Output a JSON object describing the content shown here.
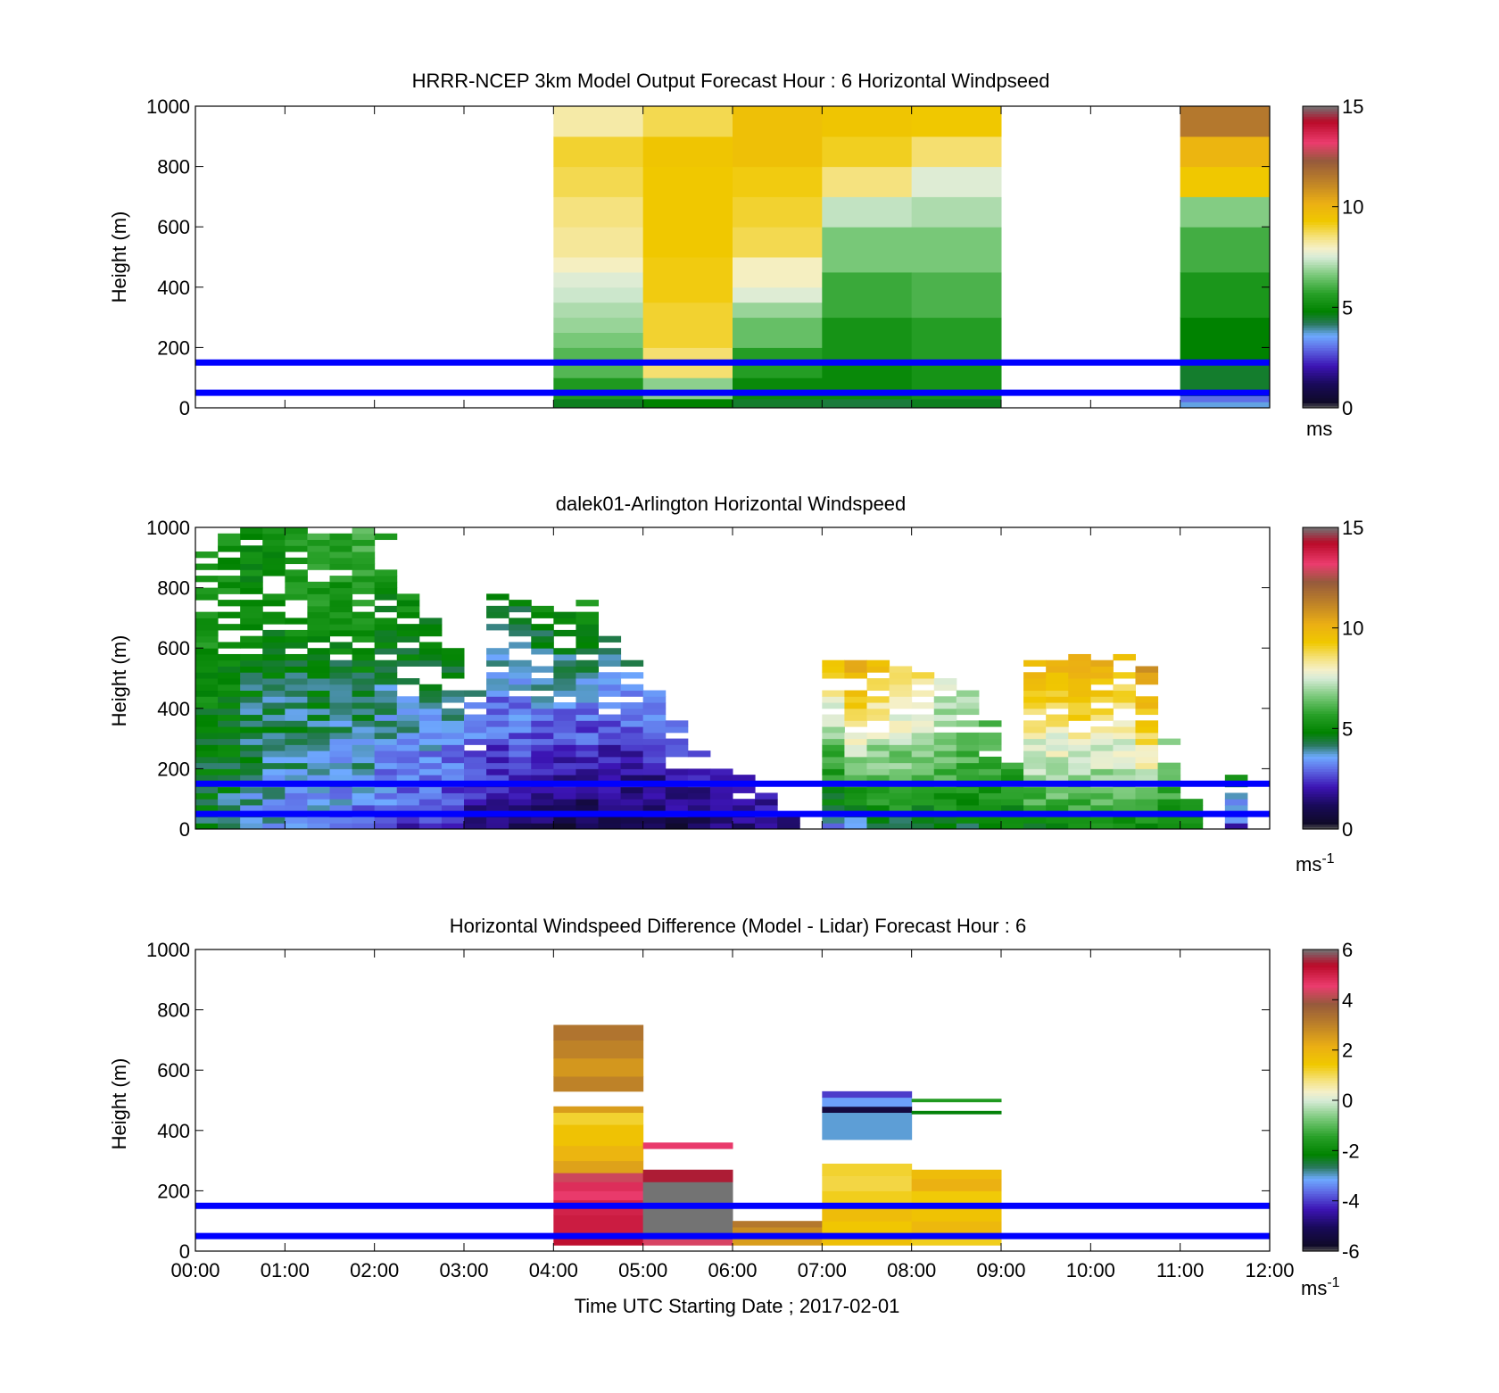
{
  "figure": {
    "xlabel": "Time UTC  Starting Date ; 2017-02-01",
    "x_ticks": [
      "00:00",
      "01:00",
      "02:00",
      "03:00",
      "04:00",
      "05:00",
      "06:00",
      "07:00",
      "08:00",
      "09:00",
      "10:00",
      "11:00",
      "12:00"
    ],
    "reference_lines_m": [
      50,
      150
    ],
    "reference_line_color": "#0000ff"
  },
  "chart_data": [
    {
      "type": "heatmap",
      "title": "HRRR-NCEP 3km Model Output   Forecast Hour : 6 Horizontal Windpseed",
      "ylabel": "Height (m)",
      "ylim": [
        0,
        1000
      ],
      "xlim_hours": [
        0,
        12
      ],
      "y_ticks": [
        0,
        200,
        400,
        600,
        800,
        1000
      ],
      "colorbar": {
        "label": "ms",
        "label_sup": "",
        "ticks": [
          0,
          5,
          10,
          15
        ],
        "range": [
          0,
          15
        ]
      },
      "columns": [
        {
          "start_h": 4,
          "end_h": 5,
          "cells": [
            [
              0,
              30,
              4.6
            ],
            [
              30,
              100,
              5.5
            ],
            [
              100,
              200,
              6.2
            ],
            [
              200,
              250,
              6.6
            ],
            [
              250,
              300,
              6.9
            ],
            [
              300,
              350,
              7.1
            ],
            [
              350,
              400,
              7.4
            ],
            [
              400,
              450,
              7.6
            ],
            [
              450,
              500,
              8.0
            ],
            [
              500,
              600,
              8.3
            ],
            [
              600,
              700,
              8.5
            ],
            [
              700,
              800,
              8.8
            ],
            [
              800,
              900,
              9.0
            ],
            [
              900,
              1000,
              8.2
            ]
          ]
        },
        {
          "start_h": 5,
          "end_h": 6,
          "cells": [
            [
              0,
              30,
              4.8
            ],
            [
              30,
              100,
              6.8
            ],
            [
              100,
              200,
              8.6
            ],
            [
              200,
              350,
              9.0
            ],
            [
              350,
              500,
              9.2
            ],
            [
              500,
              800,
              9.3
            ],
            [
              800,
              900,
              9.4
            ],
            [
              900,
              1000,
              8.8
            ]
          ]
        },
        {
          "start_h": 6,
          "end_h": 7,
          "cells": [
            [
              0,
              30,
              4.5
            ],
            [
              30,
              100,
              5.0
            ],
            [
              100,
              200,
              5.6
            ],
            [
              200,
              300,
              6.4
            ],
            [
              300,
              350,
              6.9
            ],
            [
              350,
              400,
              7.6
            ],
            [
              400,
              500,
              8.0
            ],
            [
              500,
              600,
              8.8
            ],
            [
              600,
              700,
              9.0
            ],
            [
              700,
              800,
              9.2
            ],
            [
              800,
              1000,
              9.6
            ]
          ]
        },
        {
          "start_h": 7,
          "end_h": 8,
          "cells": [
            [
              0,
              30,
              4.4
            ],
            [
              30,
              150,
              5.0
            ],
            [
              150,
              300,
              5.3
            ],
            [
              300,
              450,
              5.9
            ],
            [
              450,
              600,
              6.6
            ],
            [
              600,
              700,
              7.3
            ],
            [
              700,
              800,
              8.5
            ],
            [
              800,
              900,
              9.1
            ],
            [
              900,
              1000,
              9.4
            ]
          ]
        },
        {
          "start_h": 8,
          "end_h": 9,
          "cells": [
            [
              0,
              30,
              4.6
            ],
            [
              30,
              150,
              5.3
            ],
            [
              150,
              300,
              5.6
            ],
            [
              300,
              450,
              6.1
            ],
            [
              450,
              600,
              6.6
            ],
            [
              600,
              700,
              7.1
            ],
            [
              700,
              800,
              7.6
            ],
            [
              800,
              900,
              8.6
            ],
            [
              900,
              1000,
              9.3
            ]
          ]
        },
        {
          "start_h": 11,
          "end_h": 12,
          "cells": [
            [
              0,
              20,
              3.7
            ],
            [
              20,
              40,
              3.0
            ],
            [
              40,
              150,
              4.5
            ],
            [
              150,
              300,
              4.8
            ],
            [
              300,
              450,
              5.4
            ],
            [
              450,
              600,
              6.0
            ],
            [
              600,
              700,
              6.7
            ],
            [
              700,
              800,
              9.3
            ],
            [
              800,
              900,
              10.0
            ],
            [
              900,
              1000,
              11.5
            ]
          ]
        }
      ]
    },
    {
      "type": "heatmap",
      "title": "dalek01-Arlington  Horizontal Windspeed",
      "ylabel": "Height (m)",
      "ylim": [
        0,
        1000
      ],
      "xlim_hours": [
        0,
        12
      ],
      "y_ticks": [
        0,
        200,
        400,
        600,
        800,
        1000
      ],
      "colorbar": {
        "label": "ms",
        "label_sup": "-1",
        "ticks": [
          0,
          5,
          10,
          15
        ],
        "range": [
          0,
          15
        ]
      },
      "bin_hours": 0.25,
      "bin_height_m": 20,
      "profiles": [
        {
          "start_h": 0.0,
          "max_h": 1000,
          "low": 4.5,
          "high": 5.4
        },
        {
          "start_h": 0.25,
          "max_h": 1000,
          "low": 4.2,
          "high": 5.2
        },
        {
          "start_h": 0.5,
          "max_h": 1000,
          "low": 3.8,
          "high": 5.0
        },
        {
          "start_h": 0.75,
          "max_h": 1000,
          "low": 3.5,
          "high": 5.1
        },
        {
          "start_h": 1.0,
          "max_h": 1000,
          "low": 3.2,
          "high": 5.5
        },
        {
          "start_h": 1.25,
          "max_h": 1000,
          "low": 3.0,
          "high": 5.8
        },
        {
          "start_h": 1.5,
          "max_h": 1000,
          "low": 3.0,
          "high": 5.6
        },
        {
          "start_h": 1.75,
          "max_h": 1000,
          "low": 2.9,
          "high": 5.9
        },
        {
          "start_h": 2.0,
          "max_h": 980,
          "low": 2.6,
          "high": 5.4
        },
        {
          "start_h": 2.25,
          "max_h": 780,
          "low": 2.4,
          "high": 5.0
        },
        {
          "start_h": 2.5,
          "max_h": 700,
          "low": 2.2,
          "high": 4.8
        },
        {
          "start_h": 2.75,
          "max_h": 600,
          "low": 2.0,
          "high": 4.6
        },
        {
          "start_h": 3.0,
          "max_h": 460,
          "low": 1.6,
          "high": 3.6
        },
        {
          "start_h": 3.25,
          "max_h": 780,
          "low": 1.3,
          "high": 4.4
        },
        {
          "start_h": 3.5,
          "max_h": 780,
          "low": 1.1,
          "high": 4.6
        },
        {
          "start_h": 3.75,
          "max_h": 740,
          "low": 0.9,
          "high": 4.8
        },
        {
          "start_h": 4.0,
          "max_h": 760,
          "low": 0.7,
          "high": 4.9
        },
        {
          "start_h": 4.25,
          "max_h": 760,
          "low": 0.6,
          "high": 5.1
        },
        {
          "start_h": 4.5,
          "max_h": 640,
          "low": 0.6,
          "high": 4.2
        },
        {
          "start_h": 4.75,
          "max_h": 560,
          "low": 0.7,
          "high": 3.8
        },
        {
          "start_h": 5.0,
          "max_h": 460,
          "low": 0.8,
          "high": 3.4
        },
        {
          "start_h": 5.25,
          "max_h": 360,
          "low": 1.0,
          "high": 3.0
        },
        {
          "start_h": 5.5,
          "max_h": 280,
          "low": 1.2,
          "high": 2.6
        },
        {
          "start_h": 5.75,
          "max_h": 220,
          "low": 1.3,
          "high": 2.2
        },
        {
          "start_h": 6.0,
          "max_h": 180,
          "low": 1.5,
          "high": 1.9
        },
        {
          "start_h": 6.25,
          "max_h": 120,
          "low": 1.6,
          "high": 1.8
        },
        {
          "start_h": 6.5,
          "max_h": 60,
          "low": 1.8,
          "high": 1.9
        },
        {
          "start_h": 6.75,
          "max_h": 0,
          "low": 0,
          "high": 0
        },
        {
          "start_h": 7.0,
          "max_h": 560,
          "low": 3.3,
          "high": 9.0
        },
        {
          "start_h": 7.25,
          "max_h": 560,
          "low": 3.8,
          "high": 10.5
        },
        {
          "start_h": 7.5,
          "max_h": 560,
          "low": 4.2,
          "high": 9.5
        },
        {
          "start_h": 7.75,
          "max_h": 540,
          "low": 4.4,
          "high": 9.0
        },
        {
          "start_h": 8.0,
          "max_h": 520,
          "low": 4.5,
          "high": 8.5
        },
        {
          "start_h": 8.25,
          "max_h": 500,
          "low": 4.7,
          "high": 7.5
        },
        {
          "start_h": 8.5,
          "max_h": 460,
          "low": 4.6,
          "high": 7.0
        },
        {
          "start_h": 8.75,
          "max_h": 360,
          "low": 4.6,
          "high": 6.2
        },
        {
          "start_h": 9.0,
          "max_h": 220,
          "low": 4.6,
          "high": 5.6
        },
        {
          "start_h": 9.25,
          "max_h": 580,
          "low": 4.8,
          "high": 10.2
        },
        {
          "start_h": 9.5,
          "max_h": 580,
          "low": 5.0,
          "high": 10.0
        },
        {
          "start_h": 9.75,
          "max_h": 580,
          "low": 5.0,
          "high": 10.6
        },
        {
          "start_h": 10.0,
          "max_h": 580,
          "low": 5.1,
          "high": 10.0
        },
        {
          "start_h": 10.25,
          "max_h": 580,
          "low": 5.2,
          "high": 9.6
        },
        {
          "start_h": 10.5,
          "max_h": 560,
          "low": 5.3,
          "high": 10.8
        },
        {
          "start_h": 10.75,
          "max_h": 320,
          "low": 5.2,
          "high": 6.4
        },
        {
          "start_h": 11.0,
          "max_h": 100,
          "low": 4.8,
          "high": 5.0
        },
        {
          "start_h": 11.25,
          "max_h": 0,
          "low": 0,
          "high": 0
        },
        {
          "start_h": 11.5,
          "max_h": 200,
          "low": 2.4,
          "high": 5.2
        }
      ]
    },
    {
      "type": "heatmap",
      "title": "Horizontal Windspeed Difference (Model - Lidar) Forecast Hour : 6",
      "ylabel": "Height (m)",
      "ylim": [
        0,
        1000
      ],
      "xlim_hours": [
        0,
        12
      ],
      "y_ticks": [
        0,
        200,
        400,
        600,
        800,
        1000
      ],
      "colorbar": {
        "label": "ms",
        "label_sup": "-1",
        "ticks": [
          -6,
          -4,
          -2,
          0,
          2,
          4,
          6
        ],
        "range": [
          -6,
          6
        ]
      },
      "columns": [
        {
          "start_h": 4,
          "end_h": 5,
          "cells": [
            [
              20,
              60,
              5.3
            ],
            [
              60,
              120,
              5.1
            ],
            [
              120,
              170,
              5.0
            ],
            [
              170,
              200,
              4.6
            ],
            [
              200,
              230,
              4.8
            ],
            [
              230,
              260,
              4.3
            ],
            [
              260,
              300,
              2.4
            ],
            [
              300,
              350,
              2.0
            ],
            [
              350,
              420,
              1.6
            ],
            [
              420,
              460,
              1.2
            ],
            [
              460,
              480,
              2.5
            ],
            [
              530,
              580,
              3.0
            ],
            [
              580,
              640,
              2.6
            ],
            [
              640,
              700,
              3.0
            ],
            [
              700,
              750,
              3.3
            ]
          ]
        },
        {
          "start_h": 5,
          "end_h": 6,
          "cells": [
            [
              20,
              40,
              4.4
            ],
            [
              40,
              230,
              6.0
            ],
            [
              230,
              270,
              5.5
            ],
            [
              340,
              360,
              4.6
            ]
          ]
        },
        {
          "start_h": 6,
          "end_h": 7,
          "cells": [
            [
              20,
              60,
              2.5
            ],
            [
              60,
              80,
              2.8
            ],
            [
              80,
              100,
              3.2
            ]
          ]
        },
        {
          "start_h": 7,
          "end_h": 8,
          "cells": [
            [
              20,
              60,
              1.7
            ],
            [
              60,
              100,
              1.5
            ],
            [
              100,
              150,
              1.8
            ],
            [
              150,
              200,
              1.3
            ],
            [
              200,
              250,
              1.1
            ],
            [
              250,
              290,
              1.2
            ],
            [
              370,
              460,
              -3.0
            ],
            [
              460,
              480,
              -5.4
            ],
            [
              480,
              510,
              -3.2
            ],
            [
              510,
              530,
              -4.0
            ]
          ]
        },
        {
          "start_h": 8,
          "end_h": 9,
          "cells": [
            [
              20,
              60,
              1.3
            ],
            [
              60,
              100,
              1.9
            ],
            [
              100,
              150,
              1.6
            ],
            [
              150,
              200,
              1.4
            ],
            [
              200,
              240,
              2.1
            ],
            [
              240,
              270,
              1.8
            ],
            [
              455,
              465,
              -2.2
            ],
            [
              495,
              505,
              -1.6
            ]
          ]
        }
      ]
    }
  ]
}
